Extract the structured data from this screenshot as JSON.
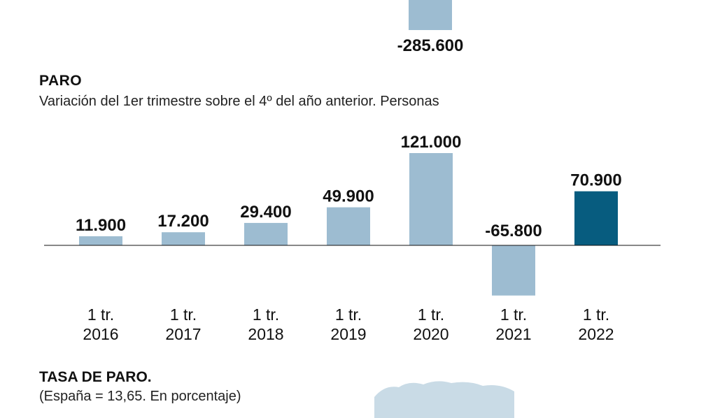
{
  "colors": {
    "bar": "#9dbcd1",
    "highlight": "#075c7f",
    "axis": "#111111",
    "map": "#c9dbe6"
  },
  "previous_chart": {
    "last_value_label": "-285.600"
  },
  "chart_data": {
    "type": "bar",
    "title": "PARO",
    "subtitle": "Variación del 1er trimestre sobre el 4º del año anterior. Personas",
    "categories": [
      [
        "1 tr.",
        "2016"
      ],
      [
        "1 tr.",
        "2017"
      ],
      [
        "1 tr.",
        "2018"
      ],
      [
        "1 tr.",
        "2019"
      ],
      [
        "1 tr.",
        "2020"
      ],
      [
        "1 tr.",
        "2021"
      ],
      [
        "1 tr.",
        "2022"
      ]
    ],
    "values": [
      11900,
      17200,
      29400,
      49900,
      121000,
      -65800,
      70900
    ],
    "value_labels": [
      "11.900",
      "17.200",
      "29.400",
      "49.900",
      "121.000",
      "-65.800",
      "70.900"
    ],
    "highlight_index": 6,
    "ylim": [
      -65800,
      121000
    ],
    "grid": false,
    "legend": "none"
  },
  "next_section": {
    "title": "TASA DE PARO.",
    "subtitle": "(España = 13,65. En porcentaje)"
  }
}
